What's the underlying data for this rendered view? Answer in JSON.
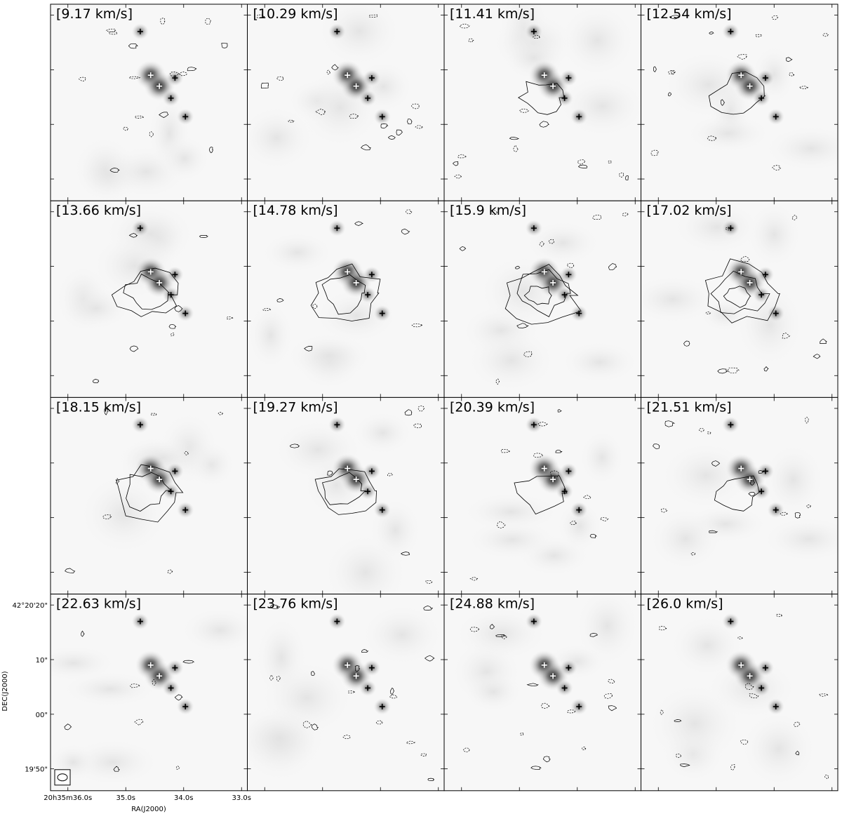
{
  "chart_data": {
    "type": "channel_map",
    "grid": {
      "rows": 4,
      "cols": 4
    },
    "colormap": "gray_r",
    "contour_styles": [
      "solid (positive)",
      "dashed (negative)"
    ],
    "channels": [
      {
        "label": "[9.17 km/s]",
        "velocity": 9.17
      },
      {
        "label": "[10.29 km/s]",
        "velocity": 10.29
      },
      {
        "label": "[11.41 km/s]",
        "velocity": 11.41
      },
      {
        "label": "[12.54 km/s]",
        "velocity": 12.54
      },
      {
        "label": "[13.66 km/s]",
        "velocity": 13.66
      },
      {
        "label": "[14.78 km/s]",
        "velocity": 14.78
      },
      {
        "label": "[15.9 km/s]",
        "velocity": 15.9
      },
      {
        "label": "[17.02 km/s]",
        "velocity": 17.02
      },
      {
        "label": "[18.15 km/s]",
        "velocity": 18.15
      },
      {
        "label": "[19.27 km/s]",
        "velocity": 19.27
      },
      {
        "label": "[20.39 km/s]",
        "velocity": 20.39
      },
      {
        "label": "[21.51 km/s]",
        "velocity": 21.51
      },
      {
        "label": "[22.63 km/s]",
        "velocity": 22.63
      },
      {
        "label": "[23.76 km/s]",
        "velocity": 23.76
      },
      {
        "label": "[24.88 km/s]",
        "velocity": 24.88
      },
      {
        "label": "[26.0 km/s]",
        "velocity": 26.0
      }
    ],
    "ra_ticks": [
      "20h35m36.0s",
      "35.0s",
      "34.0s",
      "33.0s"
    ],
    "dec_ticks": [
      "42°20'20\"",
      "10\"",
      "00\"",
      "19'50\""
    ],
    "xlabel": "RA(J2000)",
    "ylabel": "DEC(J2000)",
    "ra_range_s": [
      36.3,
      32.9
    ],
    "dec_range_arcsec": [
      -14,
      22
    ],
    "sources": [
      {
        "ra_s": 34.75,
        "dec_arcsec": 17.0,
        "bright": false
      },
      {
        "ra_s": 34.57,
        "dec_arcsec": 9.0,
        "bright": true
      },
      {
        "ra_s": 34.42,
        "dec_arcsec": 7.0,
        "bright": true
      },
      {
        "ra_s": 34.15,
        "dec_arcsec": 8.5,
        "bright": false
      },
      {
        "ra_s": 34.22,
        "dec_arcsec": 4.8,
        "bright": false
      },
      {
        "ra_s": 33.97,
        "dec_arcsec": 1.4,
        "bright": false
      }
    ],
    "colors": {
      "contour": "#000000",
      "marker_dark": "#000000",
      "marker_light": "#ffffff"
    }
  }
}
